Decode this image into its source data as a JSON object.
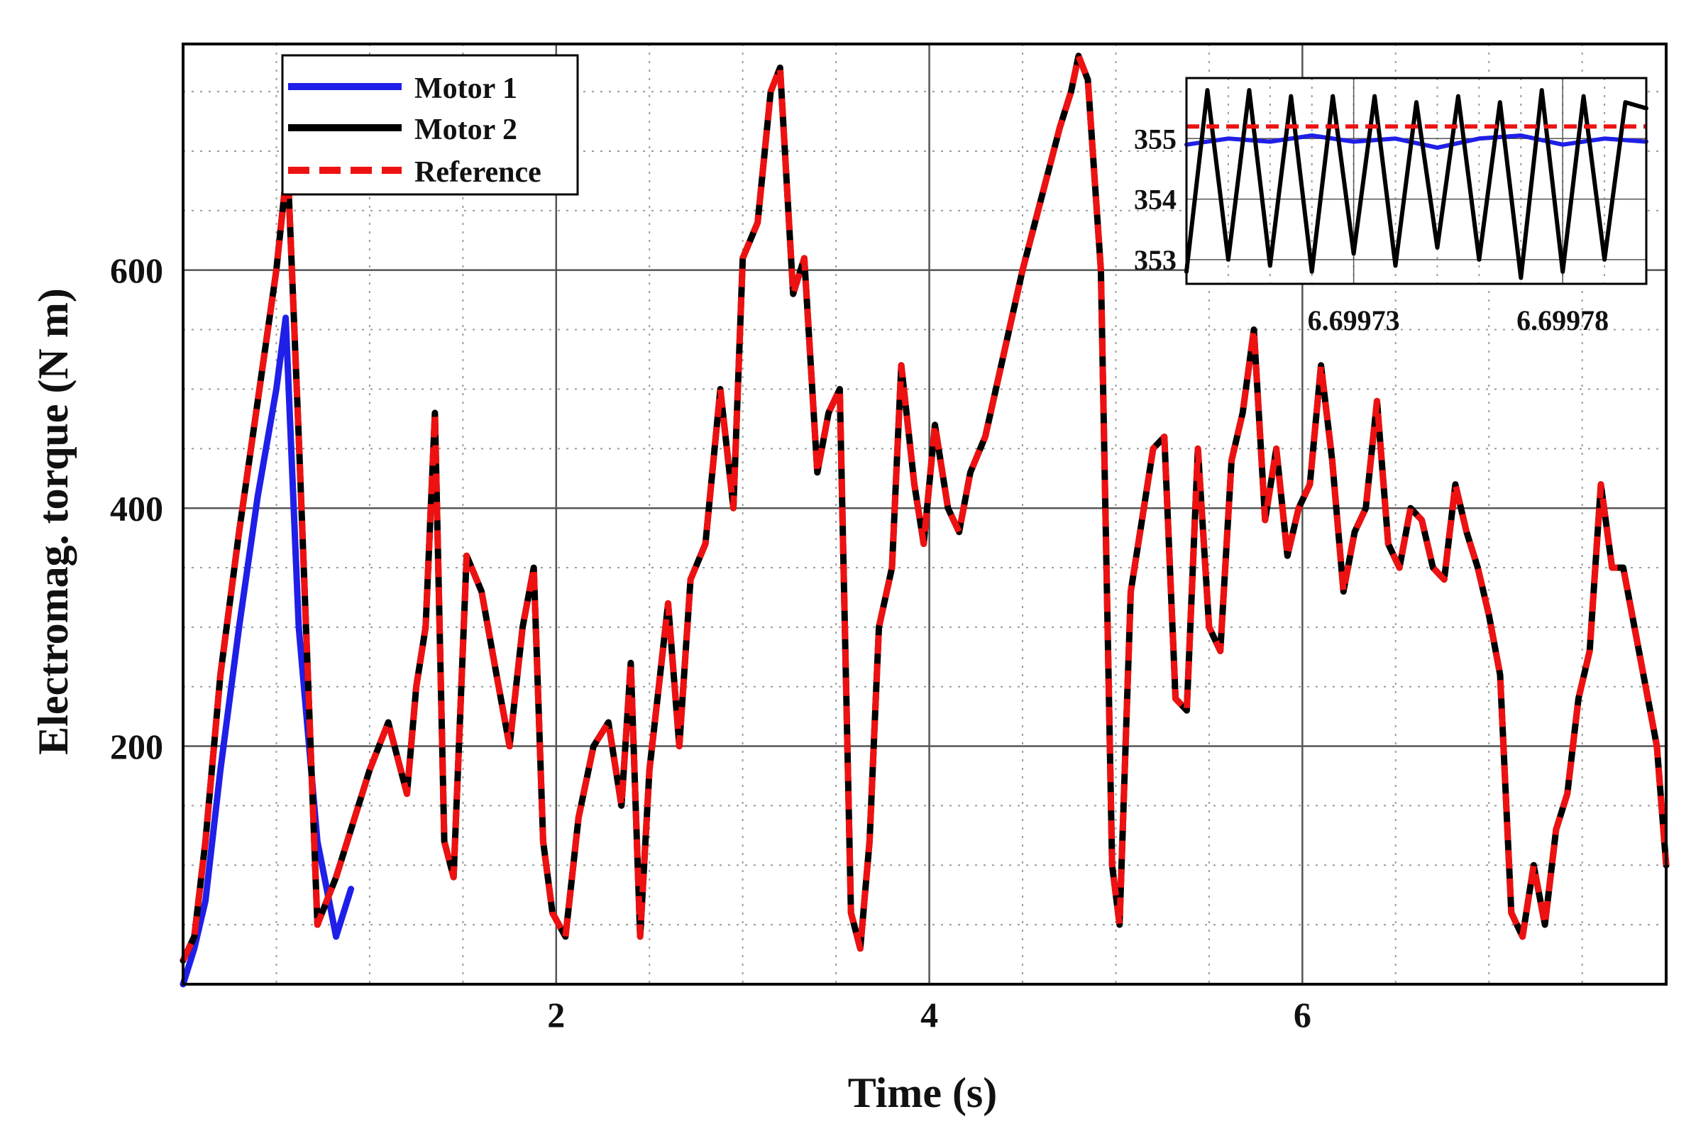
{
  "chart_data": {
    "type": "line",
    "title": "",
    "xlabel": "Time (s)",
    "ylabel": "Electromag. torque (N m)",
    "xlim": [
      0,
      7.95
    ],
    "ylim": [
      0,
      790
    ],
    "xticks": [
      2,
      4,
      6
    ],
    "xtick_labels": [
      "2",
      "4",
      "6"
    ],
    "yticks": [
      200,
      400,
      600
    ],
    "ytick_labels": [
      "200",
      "400",
      "600"
    ],
    "grid": true,
    "legend_position": "top-left",
    "series": [
      {
        "name": "Motor 1",
        "color": "#1f1fe8",
        "style": "solid",
        "x": [
          0,
          0.06,
          0.12,
          0.2,
          0.3,
          0.4,
          0.5,
          0.55,
          0.62,
          0.72,
          0.82,
          0.9
        ],
        "y": [
          0,
          30,
          70,
          180,
          300,
          410,
          500,
          560,
          300,
          120,
          40,
          80
        ]
      },
      {
        "name": "Motor 2",
        "color": "#000000",
        "style": "solid",
        "x": [
          0,
          0.06,
          0.12,
          0.2,
          0.3,
          0.4,
          0.5,
          0.56,
          0.62,
          0.72,
          0.82,
          0.9,
          1.0,
          1.1,
          1.2,
          1.25,
          1.3,
          1.35,
          1.4,
          1.45,
          1.52,
          1.6,
          1.68,
          1.75,
          1.82,
          1.88,
          1.93,
          1.98,
          2.05,
          2.12,
          2.2,
          2.28,
          2.35,
          2.4,
          2.45,
          2.5,
          2.55,
          2.6,
          2.66,
          2.72,
          2.8,
          2.88,
          2.95,
          3.0,
          3.08,
          3.15,
          3.2,
          3.27,
          3.33,
          3.4,
          3.46,
          3.52,
          3.58,
          3.63,
          3.68,
          3.73,
          3.8,
          3.85,
          3.92,
          3.97,
          4.03,
          4.1,
          4.16,
          4.22,
          4.3,
          4.4,
          4.5,
          4.6,
          4.7,
          4.76,
          4.8,
          4.85,
          4.92,
          4.98,
          5.02,
          5.08,
          5.14,
          5.2,
          5.26,
          5.32,
          5.38,
          5.44,
          5.5,
          5.56,
          5.62,
          5.68,
          5.74,
          5.8,
          5.86,
          5.92,
          5.98,
          6.04,
          6.1,
          6.16,
          6.22,
          6.28,
          6.34,
          6.4,
          6.46,
          6.52,
          6.58,
          6.64,
          6.7,
          6.76,
          6.82,
          6.88,
          6.94,
          7.0,
          7.06,
          7.12,
          7.18,
          7.24,
          7.3,
          7.36,
          7.42,
          7.48,
          7.54,
          7.6,
          7.66,
          7.72,
          7.78,
          7.84,
          7.9,
          7.95
        ],
        "y": [
          20,
          40,
          120,
          260,
          380,
          490,
          600,
          690,
          460,
          50,
          90,
          130,
          180,
          220,
          160,
          250,
          300,
          480,
          120,
          90,
          360,
          330,
          260,
          200,
          300,
          350,
          120,
          60,
          40,
          140,
          200,
          220,
          150,
          270,
          40,
          180,
          250,
          320,
          200,
          340,
          370,
          500,
          400,
          610,
          640,
          750,
          770,
          580,
          610,
          430,
          480,
          500,
          60,
          30,
          120,
          300,
          350,
          520,
          420,
          370,
          470,
          400,
          380,
          430,
          460,
          530,
          600,
          660,
          720,
          750,
          780,
          760,
          600,
          100,
          50,
          330,
          390,
          450,
          460,
          240,
          230,
          450,
          300,
          280,
          440,
          480,
          550,
          390,
          450,
          360,
          400,
          420,
          520,
          440,
          330,
          380,
          400,
          490,
          370,
          350,
          400,
          390,
          350,
          340,
          420,
          380,
          350,
          310,
          260,
          60,
          40,
          100,
          50,
          130,
          160,
          240,
          280,
          420,
          350,
          350,
          300,
          250,
          200,
          100
        ]
      },
      {
        "name": "Reference",
        "color": "#ee1111",
        "style": "dashed",
        "x": [
          0,
          0.06,
          0.12,
          0.2,
          0.3,
          0.4,
          0.5,
          0.56,
          0.62,
          0.72,
          0.82,
          0.9,
          1.0,
          1.1,
          1.2,
          1.25,
          1.3,
          1.35,
          1.4,
          1.45,
          1.52,
          1.6,
          1.68,
          1.75,
          1.82,
          1.88,
          1.93,
          1.98,
          2.05,
          2.12,
          2.2,
          2.28,
          2.35,
          2.4,
          2.45,
          2.5,
          2.55,
          2.6,
          2.66,
          2.72,
          2.8,
          2.88,
          2.95,
          3.0,
          3.08,
          3.15,
          3.2,
          3.27,
          3.33,
          3.4,
          3.46,
          3.52,
          3.58,
          3.63,
          3.68,
          3.73,
          3.8,
          3.85,
          3.92,
          3.97,
          4.03,
          4.1,
          4.16,
          4.22,
          4.3,
          4.4,
          4.5,
          4.6,
          4.7,
          4.76,
          4.8,
          4.85,
          4.92,
          4.98,
          5.02,
          5.08,
          5.14,
          5.2,
          5.26,
          5.32,
          5.38,
          5.44,
          5.5,
          5.56,
          5.62,
          5.68,
          5.74,
          5.8,
          5.86,
          5.92,
          5.98,
          6.04,
          6.1,
          6.16,
          6.22,
          6.28,
          6.34,
          6.4,
          6.46,
          6.52,
          6.58,
          6.64,
          6.7,
          6.76,
          6.82,
          6.88,
          6.94,
          7.0,
          7.06,
          7.12,
          7.18,
          7.24,
          7.3,
          7.36,
          7.42,
          7.48,
          7.54,
          7.6,
          7.66,
          7.72,
          7.78,
          7.84,
          7.9,
          7.95
        ],
        "y": [
          20,
          40,
          120,
          260,
          380,
          490,
          600,
          690,
          460,
          50,
          90,
          130,
          180,
          220,
          160,
          250,
          300,
          480,
          120,
          90,
          360,
          330,
          260,
          200,
          300,
          350,
          120,
          60,
          40,
          140,
          200,
          220,
          150,
          270,
          40,
          180,
          250,
          320,
          200,
          340,
          370,
          500,
          400,
          610,
          640,
          750,
          770,
          580,
          610,
          430,
          480,
          500,
          60,
          30,
          120,
          300,
          350,
          520,
          420,
          370,
          470,
          400,
          380,
          430,
          460,
          530,
          600,
          660,
          720,
          750,
          780,
          760,
          600,
          100,
          50,
          330,
          390,
          450,
          460,
          240,
          230,
          450,
          300,
          280,
          440,
          480,
          550,
          390,
          450,
          360,
          400,
          420,
          520,
          440,
          330,
          380,
          400,
          490,
          370,
          350,
          400,
          390,
          350,
          340,
          420,
          380,
          350,
          310,
          260,
          60,
          40,
          100,
          50,
          130,
          160,
          240,
          280,
          420,
          350,
          350,
          300,
          250,
          200,
          100
        ]
      }
    ],
    "inset": {
      "type": "line",
      "legend_position": "none",
      "xlim": [
        6.69969,
        6.6998
      ],
      "ylim": [
        352.6,
        356.0
      ],
      "xticks": [
        6.69973,
        6.69978
      ],
      "xtick_labels": [
        "6.69973",
        "6.69978"
      ],
      "yticks": [
        353,
        354,
        355
      ],
      "ytick_labels": [
        "353",
        "354",
        "355"
      ],
      "series": [
        {
          "name": "Motor 1",
          "color": "#1f1fe8",
          "style": "solid",
          "x": [
            6.69969,
            6.6997,
            6.69971,
            6.69972,
            6.69973,
            6.69974,
            6.69975,
            6.69976,
            6.69977,
            6.69978,
            6.69979,
            6.6998
          ],
          "y": [
            354.9,
            355.0,
            354.95,
            355.05,
            354.95,
            355.0,
            354.85,
            355.0,
            355.05,
            354.9,
            355.0,
            354.95
          ]
        },
        {
          "name": "Motor 2",
          "color": "#000000",
          "style": "solid",
          "x": [
            6.69969,
            6.699695,
            6.6997,
            6.699705,
            6.69971,
            6.699715,
            6.69972,
            6.699725,
            6.69973,
            6.699735,
            6.69974,
            6.699745,
            6.69975,
            6.699755,
            6.69976,
            6.699765,
            6.69977,
            6.699775,
            6.69978,
            6.699785,
            6.69979,
            6.699795,
            6.6998
          ],
          "y": [
            352.8,
            355.8,
            353.0,
            355.8,
            352.9,
            355.7,
            352.8,
            355.7,
            353.1,
            355.7,
            352.9,
            355.6,
            353.2,
            355.7,
            353.0,
            355.6,
            352.7,
            355.8,
            352.8,
            355.7,
            353.0,
            355.6,
            355.5
          ]
        },
        {
          "name": "Reference",
          "color": "#ee1111",
          "style": "dashed",
          "x": [
            6.69969,
            6.6998
          ],
          "y": [
            355.2,
            355.2
          ]
        }
      ]
    }
  }
}
